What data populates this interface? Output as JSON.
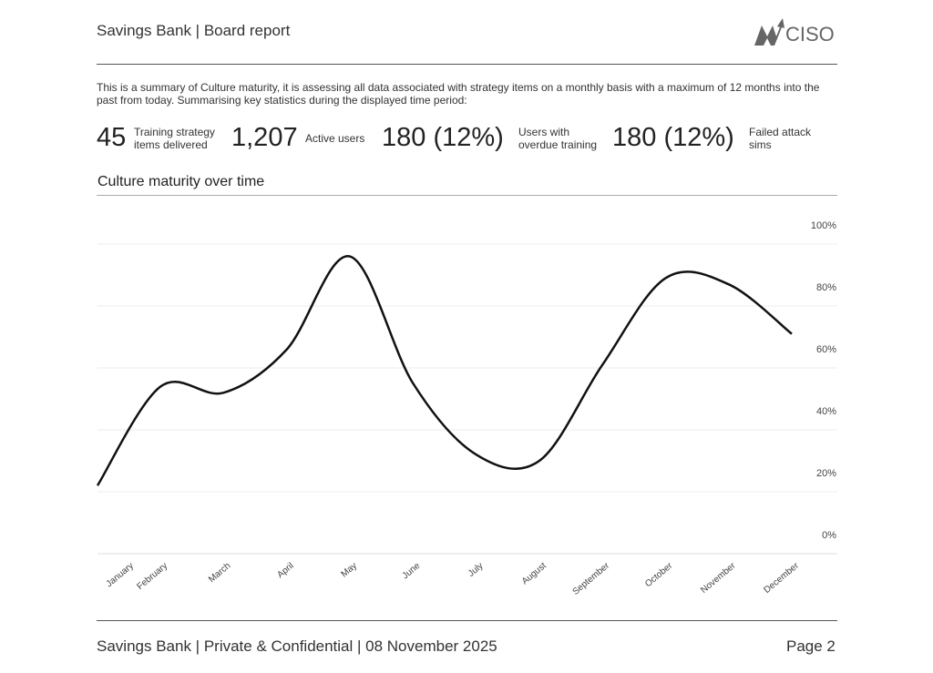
{
  "header": {
    "title": "Savings Bank | Board report",
    "logo": "MyCISO",
    "logo_text": "CISO"
  },
  "summary": "This is a summary of Culture maturity, it is assessing all data associated with strategy items on a monthly basis with a maximum of 12 months into the past from today. Summarising key statistics during the displayed time period:",
  "stats": [
    {
      "value": "45",
      "label": "Training strategy items delivered"
    },
    {
      "value": "1,207",
      "label": "Active users"
    },
    {
      "value": "180 (12%)",
      "label": "Users with overdue training"
    },
    {
      "value": "180 (12%)",
      "label": "Failed attack sims"
    }
  ],
  "chart_title": "Culture maturity over time",
  "chart_data": {
    "type": "line",
    "title": "Culture maturity over time",
    "categories": [
      "January",
      "February",
      "March",
      "April",
      "May",
      "June",
      "July",
      "August",
      "September",
      "October",
      "November",
      "December"
    ],
    "values": [
      22,
      54,
      52,
      66,
      96,
      55,
      32,
      30,
      61,
      89,
      87,
      71
    ],
    "ylim": [
      0,
      100
    ],
    "yticks": [
      "0%",
      "20%",
      "40%",
      "60%",
      "80%",
      "100%"
    ],
    "y_axis_position": "right",
    "grid": true,
    "line_color": "#111111"
  },
  "footer": {
    "left": "Savings Bank | Private & Confidential | 08 November 2025",
    "right": "Page 2"
  }
}
